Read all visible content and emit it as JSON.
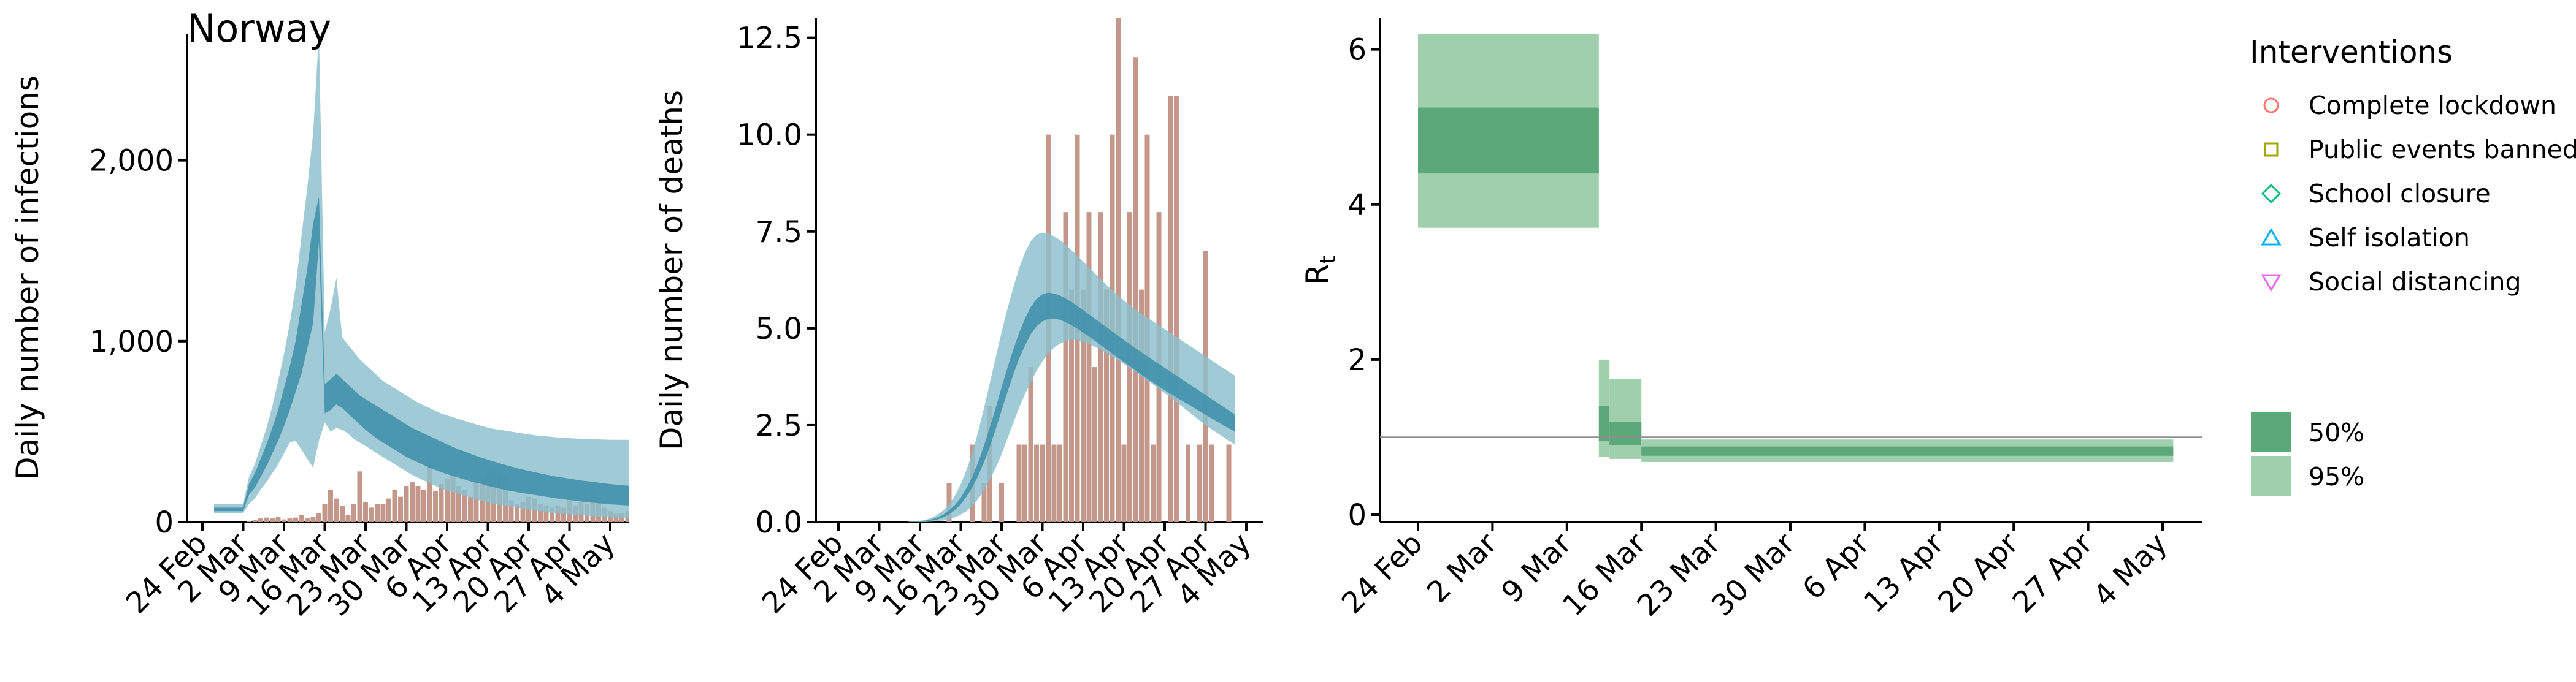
{
  "colors": {
    "infections_band_outer": "#8bbfcd",
    "infections_band_inner": "#3d90aa",
    "bars": "#c4978b",
    "rt_band_50": "#5ca87a",
    "rt_band_95": "#9fcfac",
    "reference_line": "#8f8f8f"
  },
  "chart_data": [
    {
      "type": "bar+area",
      "title": "Norway",
      "ylabel": "Daily number of infections",
      "xlabel": "",
      "ylim": [
        0,
        2700
      ],
      "yticks": [
        0,
        1000,
        2000
      ],
      "ytick_labels": [
        "0",
        "1,000",
        "2,000"
      ],
      "xticks": [
        "24 Feb",
        "2 Mar",
        "9 Mar",
        "16 Mar",
        "23 Mar",
        "30 Mar",
        "6 Apr",
        "13 Apr",
        "20 Apr",
        "27 Apr",
        "4 May"
      ],
      "x_start": "2020-02-24",
      "bars": {
        "start": "2020-02-26",
        "values": [
          0,
          0,
          0,
          0,
          0,
          0,
          5,
          10,
          20,
          25,
          20,
          30,
          15,
          20,
          25,
          40,
          20,
          30,
          50,
          100,
          180,
          130,
          90,
          40,
          100,
          280,
          110,
          80,
          100,
          100,
          130,
          180,
          140,
          200,
          220,
          200,
          180,
          360,
          170,
          210,
          240,
          280,
          200,
          180,
          140,
          230,
          250,
          280,
          290,
          270,
          250,
          120,
          100,
          110,
          140,
          130,
          100,
          90,
          80,
          90,
          80,
          140,
          90,
          120,
          100,
          200,
          130,
          80,
          60,
          50,
          50,
          60,
          70,
          40,
          30,
          50,
          30,
          40,
          40,
          40
        ]
      },
      "bands": {
        "start": "2020-02-26",
        "lower95": [
          50,
          50,
          50,
          50,
          50,
          50,
          100,
          130,
          180,
          220,
          270,
          320,
          380,
          440,
          450,
          400,
          350,
          300,
          450,
          550,
          500,
          520,
          510,
          490,
          460,
          440,
          420,
          400,
          380,
          360,
          340,
          320,
          300,
          280,
          260,
          245,
          230,
          215,
          200,
          185,
          175,
          165,
          155,
          145,
          135,
          125,
          115,
          110,
          100,
          95,
          90,
          85,
          80,
          75,
          70,
          65,
          60,
          55,
          50,
          47,
          45,
          43,
          40,
          38,
          35,
          33,
          30,
          28,
          26,
          25,
          24,
          23,
          22,
          21,
          20,
          19
        ],
        "upper95": [
          100,
          100,
          100,
          100,
          100,
          100,
          250,
          320,
          420,
          520,
          640,
          780,
          930,
          1100,
          1300,
          1580,
          1850,
          2150,
          2700,
          1050,
          1180,
          1350,
          1020,
          980,
          940,
          900,
          870,
          840,
          810,
          780,
          760,
          740,
          720,
          700,
          680,
          660,
          645,
          630,
          615,
          600,
          590,
          580,
          570,
          560,
          550,
          540,
          530,
          522,
          515,
          510,
          505,
          500,
          495,
          490,
          485,
          480,
          477,
          474,
          471,
          468,
          466,
          464,
          462,
          460,
          459,
          458,
          457,
          456,
          455,
          455,
          455,
          455,
          455,
          455,
          455,
          455
        ],
        "lower50": [
          60,
          60,
          60,
          60,
          60,
          60,
          150,
          190,
          250,
          310,
          380,
          450,
          530,
          620,
          720,
          820,
          960,
          1100,
          1550,
          600,
          620,
          650,
          630,
          600,
          570,
          540,
          510,
          485,
          460,
          440,
          420,
          400,
          380,
          360,
          345,
          330,
          315,
          300,
          288,
          276,
          265,
          255,
          245,
          235,
          225,
          217,
          210,
          200,
          193,
          185,
          178,
          171,
          165,
          160,
          155,
          150,
          145,
          140,
          135,
          130,
          126,
          122,
          118,
          114,
          110,
          107,
          104,
          101,
          98,
          96,
          94,
          92,
          90,
          88,
          87,
          85
        ],
        "upper50": [
          80,
          80,
          80,
          80,
          80,
          80,
          210,
          270,
          350,
          430,
          520,
          620,
          740,
          860,
          1000,
          1200,
          1400,
          1650,
          1800,
          760,
          790,
          820,
          790,
          760,
          730,
          700,
          680,
          660,
          640,
          620,
          600,
          580,
          560,
          540,
          520,
          505,
          490,
          475,
          460,
          445,
          430,
          415,
          402,
          390,
          378,
          366,
          355,
          345,
          335,
          325,
          316,
          307,
          298,
          290,
          283,
          276,
          269,
          262,
          256,
          250,
          245,
          240,
          235,
          230,
          226,
          222,
          218,
          214,
          210,
          207,
          204,
          201,
          198,
          196,
          194,
          192
        ]
      }
    },
    {
      "type": "bar+area",
      "title": "",
      "ylabel": "Daily number of deaths",
      "xlabel": "",
      "ylim": [
        0,
        13
      ],
      "yticks": [
        0,
        2.5,
        5,
        7.5,
        10,
        12.5
      ],
      "ytick_labels": [
        "0.0",
        "2.5",
        "5.0",
        "7.5",
        "10.0",
        "12.5"
      ],
      "xticks": [
        "24 Feb",
        "2 Mar",
        "9 Mar",
        "16 Mar",
        "23 Mar",
        "30 Mar",
        "6 Apr",
        "13 Apr",
        "20 Apr",
        "27 Apr",
        "4 May"
      ],
      "x_start": "2020-02-24",
      "bars": {
        "start": "2020-03-14",
        "values": [
          1,
          0,
          0,
          0,
          2,
          0,
          1,
          3,
          0,
          1,
          0,
          0,
          2,
          2,
          4,
          2,
          2,
          10,
          2,
          2,
          8,
          6,
          10,
          6,
          8,
          4,
          8,
          6,
          10,
          13,
          2,
          8,
          12,
          6,
          10,
          2,
          8,
          0,
          11,
          11,
          0,
          2,
          0,
          2,
          7,
          2,
          0,
          0,
          2
        ]
      },
      "bands": {
        "start": "2020-03-07",
        "lower95": [
          0,
          0,
          0,
          0,
          0.01,
          0.02,
          0.04,
          0.07,
          0.12,
          0.19,
          0.28,
          0.42,
          0.6,
          0.82,
          1.1,
          1.4,
          1.75,
          2.15,
          2.55,
          2.95,
          3.3,
          3.6,
          3.9,
          4.15,
          4.35,
          4.5,
          4.6,
          4.68,
          4.7,
          4.7,
          4.65,
          4.6,
          4.52,
          4.45,
          4.36,
          4.27,
          4.18,
          4.08,
          3.98,
          3.88,
          3.77,
          3.66,
          3.55,
          3.44,
          3.33,
          3.22,
          3.1,
          2.98,
          2.86,
          2.74,
          2.62,
          2.5,
          2.4,
          2.3,
          2.2,
          2.1,
          2
        ],
        "upper95": [
          0.01,
          0.02,
          0.03,
          0.06,
          0.11,
          0.19,
          0.3,
          0.46,
          0.68,
          0.98,
          1.35,
          1.8,
          2.35,
          2.95,
          3.6,
          4.25,
          4.9,
          5.5,
          6.05,
          6.55,
          6.95,
          7.25,
          7.42,
          7.47,
          7.45,
          7.38,
          7.28,
          7.16,
          7.02,
          6.88,
          6.72,
          6.57,
          6.42,
          6.27,
          6.12,
          5.98,
          5.85,
          5.72,
          5.6,
          5.49,
          5.38,
          5.28,
          5.18,
          5.08,
          4.98,
          4.88,
          4.78,
          4.68,
          4.58,
          4.48,
          4.38,
          4.28,
          4.18,
          4.08,
          3.98,
          3.88,
          3.78
        ],
        "lower50": [
          0,
          0,
          0.01,
          0.02,
          0.04,
          0.07,
          0.12,
          0.2,
          0.31,
          0.46,
          0.66,
          0.9,
          1.2,
          1.55,
          1.95,
          2.4,
          2.88,
          3.35,
          3.8,
          4.22,
          4.55,
          4.85,
          5.05,
          5.18,
          5.24,
          5.25,
          5.22,
          5.16,
          5.08,
          4.99,
          4.89,
          4.79,
          4.68,
          4.57,
          4.46,
          4.35,
          4.24,
          4.13,
          4.02,
          3.91,
          3.8,
          3.7,
          3.6,
          3.5,
          3.4,
          3.31,
          3.22,
          3.13,
          3.04,
          2.95,
          2.86,
          2.77,
          2.68,
          2.59,
          2.5,
          2.42,
          2.34
        ],
        "upper50": [
          0,
          0.01,
          0.02,
          0.04,
          0.07,
          0.12,
          0.19,
          0.3,
          0.44,
          0.63,
          0.88,
          1.18,
          1.55,
          1.98,
          2.45,
          2.95,
          3.48,
          3.98,
          4.45,
          4.88,
          5.25,
          5.55,
          5.76,
          5.88,
          5.92,
          5.9,
          5.85,
          5.77,
          5.68,
          5.58,
          5.47,
          5.36,
          5.25,
          5.14,
          5.03,
          4.92,
          4.81,
          4.7,
          4.59,
          4.48,
          4.38,
          4.28,
          4.18,
          4.08,
          3.98,
          3.88,
          3.78,
          3.68,
          3.58,
          3.48,
          3.38,
          3.28,
          3.18,
          3.08,
          2.98,
          2.88,
          2.78
        ]
      }
    },
    {
      "type": "area",
      "title": "",
      "ylabel": "R",
      "ylabel_subscript": "t",
      "xlabel": "",
      "ylim": [
        0,
        6.4
      ],
      "yticks": [
        0,
        2,
        4,
        6
      ],
      "ytick_labels": [
        "0",
        "2",
        "4",
        "6"
      ],
      "xticks": [
        "24 Feb",
        "2 Mar",
        "9 Mar",
        "16 Mar",
        "23 Mar",
        "30 Mar",
        "6 Apr",
        "13 Apr",
        "20 Apr",
        "27 Apr",
        "4 May"
      ],
      "x_start": "2020-02-24",
      "reference_line": 1,
      "steps": [
        {
          "from": "2020-02-24",
          "to": "2020-03-12",
          "lower95": 3.7,
          "upper95": 6.2,
          "lower50": 4.4,
          "upper50": 5.25
        },
        {
          "from": "2020-03-12",
          "to": "2020-03-13",
          "lower95": 0.75,
          "upper95": 2.0,
          "lower50": 0.95,
          "upper50": 1.4
        },
        {
          "from": "2020-03-13",
          "to": "2020-03-16",
          "lower95": 0.72,
          "upper95": 1.75,
          "lower50": 0.9,
          "upper50": 1.2
        },
        {
          "from": "2020-03-16",
          "to": "2020-05-05",
          "lower95": 0.68,
          "upper95": 0.97,
          "lower50": 0.76,
          "upper50": 0.88
        }
      ],
      "legend": {
        "title": "Interventions",
        "placement": "right",
        "items": [
          {
            "label": "Complete lockdown",
            "shape": "circle-icon",
            "color": "#f8766d"
          },
          {
            "label": "Public events banned",
            "shape": "square-icon",
            "color": "#a3a500"
          },
          {
            "label": "School closure",
            "shape": "diamond-icon",
            "color": "#00bf7d"
          },
          {
            "label": "Self isolation",
            "shape": "triangle-up-icon",
            "color": "#00b0f6"
          },
          {
            "label": "Social distancing",
            "shape": "triangle-down-icon",
            "color": "#e76bf3"
          }
        ],
        "bands": [
          {
            "label": "50%",
            "color": "#5ca87a"
          },
          {
            "label": "95%",
            "color": "#9fcfac"
          }
        ]
      }
    }
  ]
}
